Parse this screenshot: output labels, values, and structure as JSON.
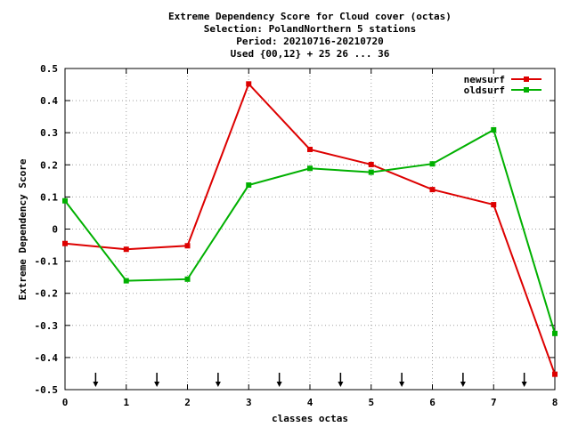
{
  "chart_data": {
    "type": "line",
    "title_lines": [
      "Extreme Dependency Score  for Cloud cover (octas)",
      "Selection: PolandNorthern      5 stations",
      "Period: 20210716-20210720",
      "Used {00,12} + 25 26 ... 36"
    ],
    "xlabel": "classes octas",
    "ylabel": "Extreme Dependency Score",
    "xlim": [
      0,
      8
    ],
    "ylim": [
      -0.5,
      0.5
    ],
    "x_ticks": [
      "0",
      "1",
      "2",
      "3",
      "4",
      "5",
      "6",
      "7",
      "8"
    ],
    "y_ticks": [
      "-0.5",
      "-0.4",
      "-0.3",
      "-0.2",
      "-0.1",
      "0",
      "0.1",
      "0.2",
      "0.3",
      "0.4",
      "0.5"
    ],
    "grid": true,
    "legend_position": "top-right",
    "x": [
      0,
      1,
      2,
      3,
      4,
      5,
      6,
      7,
      8
    ],
    "series": [
      {
        "name": "newsurf",
        "color": "#dd0000",
        "values": [
          -0.045,
          -0.063,
          -0.052,
          0.452,
          0.248,
          0.201,
          0.123,
          0.076,
          -0.452
        ]
      },
      {
        "name": "oldsurf",
        "color": "#00b000",
        "values": [
          0.088,
          -0.161,
          -0.156,
          0.137,
          0.189,
          0.177,
          0.203,
          0.309,
          -0.325
        ]
      }
    ],
    "arrow_markers_x": [
      0.5,
      1.5,
      2.5,
      3.5,
      4.5,
      5.5,
      6.5,
      7.5
    ]
  }
}
